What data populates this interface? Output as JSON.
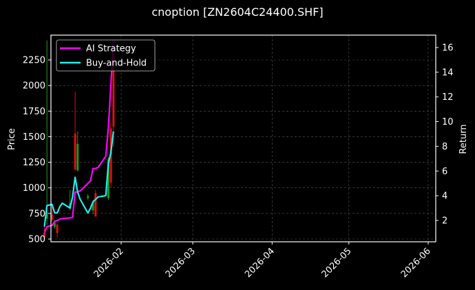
{
  "title": "cnoption [ZN2604C24400.SHF]",
  "chart_data": {
    "type": "line",
    "title": "cnoption [ZN2604C24400.SHF]",
    "xlabel": "",
    "ylabel": "Price",
    "y2label": "Return",
    "grid": true,
    "legend_position": "upper left",
    "x_ticks": [
      "2026-02",
      "2026-03",
      "2026-04",
      "2026-05",
      "2026-06"
    ],
    "y_ticks": [
      500,
      750,
      1000,
      1250,
      1500,
      1750,
      2000,
      2250
    ],
    "y2_ticks": [
      2,
      4,
      6,
      8,
      10,
      12,
      14,
      16
    ],
    "ylim": [
      470,
      2490
    ],
    "y2lim": [
      0.3,
      16.9
    ],
    "x_range": [
      "2026-01-02",
      "2026-06-05"
    ],
    "series": [
      {
        "name": "AI Strategy",
        "color": "#ff00ff",
        "axis": "return",
        "x": [
          "2026-01-02",
          "2026-01-03",
          "2026-01-05",
          "2026-01-06",
          "2026-01-07",
          "2026-01-08",
          "2026-01-09",
          "2026-01-12",
          "2026-01-13",
          "2026-01-14",
          "2026-01-15",
          "2026-01-16",
          "2026-01-19",
          "2026-01-20",
          "2026-01-21",
          "2026-01-22",
          "2026-01-23",
          "2026-01-26",
          "2026-01-27",
          "2026-01-28",
          "2026-01-29"
        ],
        "values": [
          1.0,
          1.5,
          1.6,
          1.9,
          2.0,
          2.1,
          2.15,
          2.2,
          2.25,
          4.3,
          4.3,
          4.4,
          5.0,
          5.2,
          6.2,
          6.2,
          6.3,
          7.2,
          9.5,
          13.0,
          16.6
        ]
      },
      {
        "name": "Buy-and-Hold",
        "color": "#22eeee",
        "axis": "return",
        "x": [
          "2026-01-02",
          "2026-01-03",
          "2026-01-05",
          "2026-01-06",
          "2026-01-07",
          "2026-01-08",
          "2026-01-09",
          "2026-01-12",
          "2026-01-13",
          "2026-01-14",
          "2026-01-15",
          "2026-01-16",
          "2026-01-19",
          "2026-01-20",
          "2026-01-21",
          "2026-01-22",
          "2026-01-23",
          "2026-01-26",
          "2026-01-27",
          "2026-01-28",
          "2026-01-29"
        ],
        "values": [
          1.5,
          3.2,
          3.3,
          2.6,
          2.6,
          3.1,
          3.4,
          3.0,
          3.9,
          5.5,
          4.3,
          3.7,
          2.6,
          3.0,
          3.5,
          3.7,
          3.9,
          4.0,
          6.6,
          7.5,
          9.2
        ]
      }
    ],
    "candles": [
      {
        "x": "2026-01-02",
        "open": 560,
        "high": 640,
        "low": 480,
        "close": 520,
        "color": "red"
      },
      {
        "x": "2026-01-03",
        "open": 700,
        "high": 2440,
        "low": 640,
        "close": 760,
        "color": "green"
      },
      {
        "x": "2026-01-05",
        "open": 740,
        "high": 820,
        "low": 670,
        "close": 690,
        "color": "red"
      },
      {
        "x": "2026-01-06",
        "open": 660,
        "high": 690,
        "low": 600,
        "close": 620,
        "color": "green"
      },
      {
        "x": "2026-01-07",
        "open": 640,
        "high": 650,
        "low": 510,
        "close": 560,
        "color": "red"
      },
      {
        "x": "2026-01-12",
        "open": 800,
        "high": 980,
        "low": 780,
        "close": 850,
        "color": "green"
      },
      {
        "x": "2026-01-14",
        "open": 1530,
        "high": 1940,
        "low": 1170,
        "close": 1180,
        "color": "red"
      },
      {
        "x": "2026-01-15",
        "open": 1170,
        "high": 1550,
        "low": 1160,
        "close": 1430,
        "color": "green"
      },
      {
        "x": "2026-01-19",
        "open": 920,
        "high": 940,
        "low": 880,
        "close": 900,
        "color": "green"
      },
      {
        "x": "2026-01-21",
        "open": 780,
        "high": 880,
        "low": 740,
        "close": 860,
        "color": "green"
      },
      {
        "x": "2026-01-22",
        "open": 950,
        "high": 980,
        "low": 720,
        "close": 720,
        "color": "red"
      },
      {
        "x": "2026-01-27",
        "open": 900,
        "high": 1300,
        "low": 880,
        "close": 1280,
        "color": "green"
      },
      {
        "x": "2026-01-28",
        "open": 1580,
        "high": 1640,
        "low": 1000,
        "close": 1050,
        "color": "red"
      },
      {
        "x": "2026-01-29",
        "open": 1600,
        "high": 2350,
        "low": 1400,
        "close": 2300,
        "color": "red"
      }
    ]
  },
  "legend": {
    "items": [
      {
        "label": "AI Strategy",
        "color": "#ff00ff"
      },
      {
        "label": "Buy-and-Hold",
        "color": "#22eeee"
      }
    ]
  },
  "axes": {
    "left_label": "Price",
    "right_label": "Return"
  }
}
